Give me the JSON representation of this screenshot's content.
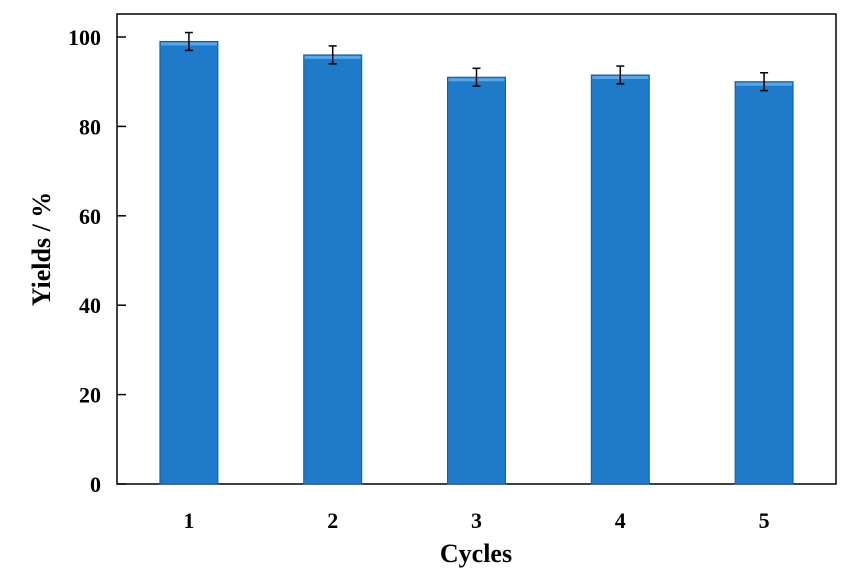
{
  "chart_data": {
    "type": "bar",
    "categories": [
      "1",
      "2",
      "3",
      "4",
      "5"
    ],
    "values": [
      99,
      96,
      91,
      91.5,
      90
    ],
    "errors": [
      2,
      2,
      2,
      2,
      2
    ],
    "title": "",
    "xlabel": "Cycles",
    "ylabel": "Yields / %",
    "ylim": [
      0,
      100
    ],
    "yticks": [
      0,
      20,
      40,
      60,
      80,
      100
    ],
    "grid": false,
    "legend": "none",
    "bar_color": "#1f7ac9",
    "bar_edge_color": "#0f5ea8",
    "error_color": "#000000"
  }
}
